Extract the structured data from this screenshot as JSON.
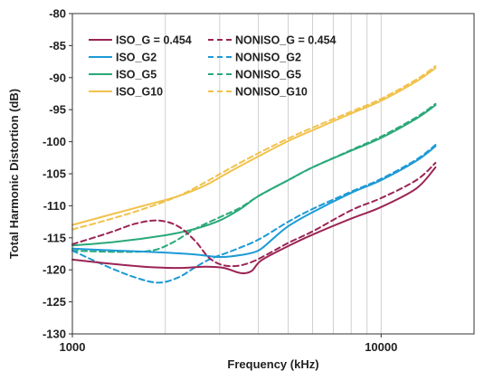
{
  "chart_data": {
    "type": "line",
    "title": "",
    "xlabel": "Frequency (kHz)",
    "ylabel": "Total Harmonic Distortion (dB)",
    "x_scale": "log",
    "xlim": [
      1000,
      20000
    ],
    "ylim": [
      -130,
      -80
    ],
    "x_ticks": [
      "1000",
      "10000"
    ],
    "y_ticks": [
      "-80",
      "-85",
      "-90",
      "-95",
      "-100",
      "-105",
      "-110",
      "-115",
      "-120",
      "-125",
      "-130"
    ],
    "grid": "vertical log grid, light gray",
    "legend_position": "top-left, inside plot",
    "series": [
      {
        "name": "ISO_G = 0.454",
        "color": "#9b2454",
        "dash": "solid",
        "points": [
          [
            1000,
            -118.4
          ],
          [
            1300,
            -119.0
          ],
          [
            1700,
            -119.5
          ],
          [
            2200,
            -119.7
          ],
          [
            2700,
            -119.5
          ],
          [
            3100,
            -119.7
          ],
          [
            3500,
            -120.5
          ],
          [
            3800,
            -120.2
          ],
          [
            4100,
            -118.5
          ],
          [
            5000,
            -116.3
          ],
          [
            6000,
            -114.5
          ],
          [
            8000,
            -112.0
          ],
          [
            10000,
            -110.2
          ],
          [
            13000,
            -107.3
          ],
          [
            15000,
            -104.0
          ]
        ]
      },
      {
        "name": "NONISO_G = 0.454",
        "color": "#9b2454",
        "dash": "dashed",
        "points": [
          [
            1000,
            -116.0
          ],
          [
            1300,
            -114.3
          ],
          [
            1600,
            -112.8
          ],
          [
            1900,
            -112.3
          ],
          [
            2200,
            -113.2
          ],
          [
            2500,
            -115.5
          ],
          [
            2800,
            -118.3
          ],
          [
            3200,
            -119.4
          ],
          [
            3800,
            -118.8
          ],
          [
            5000,
            -115.8
          ],
          [
            6000,
            -114.0
          ],
          [
            8000,
            -110.7
          ],
          [
            10000,
            -108.8
          ],
          [
            13000,
            -106.0
          ],
          [
            15000,
            -103.3
          ]
        ]
      },
      {
        "name": "ISO_G2",
        "color": "#1c9ad6",
        "dash": "solid",
        "points": [
          [
            1000,
            -116.7
          ],
          [
            1400,
            -117.0
          ],
          [
            2000,
            -117.3
          ],
          [
            2500,
            -117.6
          ],
          [
            3000,
            -118.0
          ],
          [
            3500,
            -117.7
          ],
          [
            4000,
            -117.0
          ],
          [
            4500,
            -115.0
          ],
          [
            5000,
            -113.2
          ],
          [
            6000,
            -111.0
          ],
          [
            8000,
            -108.0
          ],
          [
            10000,
            -106.0
          ],
          [
            13000,
            -103.0
          ],
          [
            15000,
            -100.7
          ]
        ]
      },
      {
        "name": "NONISO_G2",
        "color": "#1c9ad6",
        "dash": "dashed",
        "points": [
          [
            1000,
            -117.0
          ],
          [
            1300,
            -119.5
          ],
          [
            1600,
            -121.2
          ],
          [
            1900,
            -122.0
          ],
          [
            2200,
            -121.2
          ],
          [
            2500,
            -119.6
          ],
          [
            2800,
            -118.3
          ],
          [
            3300,
            -117.0
          ],
          [
            4000,
            -115.3
          ],
          [
            5000,
            -112.5
          ],
          [
            6000,
            -110.5
          ],
          [
            8000,
            -107.8
          ],
          [
            10000,
            -105.8
          ],
          [
            13000,
            -102.8
          ],
          [
            15000,
            -100.5
          ]
        ]
      },
      {
        "name": "ISO_G5",
        "color": "#2aa979",
        "dash": "solid",
        "points": [
          [
            1000,
            -116.2
          ],
          [
            1400,
            -115.6
          ],
          [
            2000,
            -114.6
          ],
          [
            2500,
            -113.6
          ],
          [
            3000,
            -112.3
          ],
          [
            3500,
            -110.5
          ],
          [
            4000,
            -108.5
          ],
          [
            5000,
            -106.0
          ],
          [
            6000,
            -104.0
          ],
          [
            8000,
            -101.4
          ],
          [
            10000,
            -99.4
          ],
          [
            13000,
            -96.4
          ],
          [
            15000,
            -94.3
          ]
        ]
      },
      {
        "name": "NONISO_G5",
        "color": "#2aa979",
        "dash": "dashed",
        "points": [
          [
            1000,
            -117.0
          ],
          [
            1400,
            -117.2
          ],
          [
            1800,
            -117.0
          ],
          [
            2100,
            -115.8
          ],
          [
            2500,
            -113.6
          ],
          [
            3000,
            -111.8
          ],
          [
            3500,
            -110.3
          ],
          [
            4000,
            -108.5
          ],
          [
            5000,
            -106.0
          ],
          [
            6000,
            -104.0
          ],
          [
            8000,
            -101.3
          ],
          [
            10000,
            -99.2
          ],
          [
            13000,
            -96.2
          ],
          [
            15000,
            -94.1
          ]
        ]
      },
      {
        "name": "ISO_G10",
        "color": "#f1c24c",
        "dash": "solid",
        "points": [
          [
            1000,
            -113.0
          ],
          [
            1300,
            -111.5
          ],
          [
            1700,
            -110.0
          ],
          [
            2200,
            -108.5
          ],
          [
            2700,
            -106.8
          ],
          [
            3200,
            -104.8
          ],
          [
            4000,
            -102.3
          ],
          [
            5000,
            -99.9
          ],
          [
            6000,
            -98.2
          ],
          [
            8000,
            -95.6
          ],
          [
            10000,
            -93.6
          ],
          [
            13000,
            -90.6
          ],
          [
            15000,
            -88.5
          ]
        ]
      },
      {
        "name": "NONISO_G10",
        "color": "#f1c24c",
        "dash": "dashed",
        "points": [
          [
            1000,
            -113.7
          ],
          [
            1300,
            -112.2
          ],
          [
            1700,
            -110.5
          ],
          [
            2200,
            -108.5
          ],
          [
            2700,
            -106.3
          ],
          [
            3200,
            -104.3
          ],
          [
            4000,
            -101.8
          ],
          [
            5000,
            -99.5
          ],
          [
            6000,
            -97.8
          ],
          [
            8000,
            -95.3
          ],
          [
            10000,
            -93.3
          ],
          [
            13000,
            -90.3
          ],
          [
            15000,
            -88.2
          ]
        ]
      }
    ]
  }
}
